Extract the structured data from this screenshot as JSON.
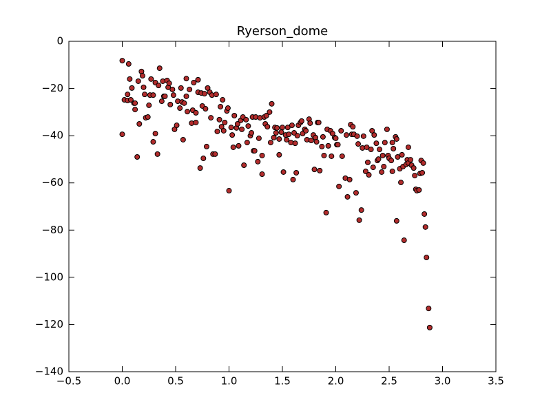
{
  "chart_data": {
    "type": "scatter",
    "title": "Ryerson_dome",
    "color": "#b22c2c",
    "edgecolor": "#000000",
    "xlim": [
      -0.5,
      3.5
    ],
    "xticks": [
      {
        "value": -0.5,
        "label": "−0.5"
      },
      {
        "value": 0,
        "label": "0.0"
      },
      0.5,
      {
        "value": 1,
        "label": "1.0"
      },
      1.5,
      {
        "value": 2,
        "label": "2.0"
      },
      2.5,
      {
        "value": 3,
        "label": "3.0"
      },
      3.5
    ],
    "ylim": [
      -140,
      0
    ],
    "yticks": [
      {
        "value": -140,
        "label": "−140"
      },
      {
        "value": -120,
        "label": "−120"
      },
      {
        "value": -100,
        "label": "−100"
      },
      {
        "value": -80,
        "label": "−80"
      },
      {
        "value": -60,
        "label": "−60"
      },
      {
        "value": -40,
        "label": "−40"
      },
      {
        "value": -20,
        "label": "−20"
      },
      0
    ],
    "x": [
      0.0,
      0.0,
      0.02,
      0.05,
      0.05,
      0.06,
      0.07,
      0.08,
      0.09,
      0.11,
      0.12,
      0.12,
      0.14,
      0.15,
      0.16,
      0.18,
      0.19,
      0.2,
      0.21,
      0.22,
      0.24,
      0.25,
      0.26,
      0.27,
      0.29,
      0.29,
      0.31,
      0.31,
      0.33,
      0.34,
      0.35,
      0.37,
      0.38,
      0.39,
      0.4,
      0.42,
      0.43,
      0.44,
      0.45,
      0.47,
      0.48,
      0.49,
      0.51,
      0.52,
      0.54,
      0.55,
      0.56,
      0.57,
      0.58,
      0.6,
      0.6,
      0.61,
      0.63,
      0.65,
      0.66,
      0.67,
      0.69,
      0.69,
      0.71,
      0.71,
      0.73,
      0.74,
      0.75,
      0.76,
      0.77,
      0.78,
      0.79,
      0.8,
      0.82,
      0.83,
      0.84,
      0.85,
      0.87,
      0.88,
      0.89,
      0.91,
      0.92,
      0.93,
      0.94,
      0.95,
      0.96,
      0.98,
      0.99,
      1.0,
      1.02,
      1.03,
      1.04,
      1.05,
      1.07,
      1.08,
      1.09,
      1.11,
      1.12,
      1.13,
      1.14,
      1.16,
      1.17,
      1.18,
      1.2,
      1.21,
      1.22,
      1.23,
      1.24,
      1.25,
      1.27,
      1.28,
      1.29,
      1.31,
      1.31,
      1.33,
      1.34,
      1.35,
      1.36,
      1.38,
      1.39,
      1.4,
      1.42,
      1.43,
      1.44,
      1.45,
      1.47,
      1.47,
      1.49,
      1.5,
      1.51,
      1.53,
      1.54,
      1.55,
      1.56,
      1.58,
      1.59,
      1.6,
      1.61,
      1.62,
      1.63,
      1.64,
      1.65,
      1.67,
      1.68,
      1.69,
      1.71,
      1.72,
      1.73,
      1.75,
      1.76,
      1.77,
      1.79,
      1.8,
      1.81,
      1.82,
      1.83,
      1.84,
      1.85,
      1.87,
      1.88,
      1.89,
      1.91,
      1.92,
      1.93,
      1.95,
      1.96,
      1.97,
      1.99,
      2.0,
      2.01,
      2.02,
      2.03,
      2.05,
      2.06,
      2.09,
      2.1,
      2.11,
      2.13,
      2.14,
      2.15,
      2.16,
      2.17,
      2.19,
      2.2,
      2.21,
      2.22,
      2.24,
      2.25,
      2.26,
      2.28,
      2.29,
      2.3,
      2.31,
      2.33,
      2.34,
      2.35,
      2.36,
      2.38,
      2.39,
      2.4,
      2.41,
      2.43,
      2.44,
      2.45,
      2.46,
      2.48,
      2.49,
      2.5,
      2.52,
      2.53,
      2.53,
      2.54,
      2.56,
      2.57,
      2.57,
      2.58,
      2.6,
      2.61,
      2.62,
      2.63,
      2.64,
      2.66,
      2.67,
      2.68,
      2.68,
      2.7,
      2.71,
      2.73,
      2.74,
      2.75,
      2.76,
      2.78,
      2.79,
      2.8,
      2.81,
      2.82,
      2.83,
      2.84,
      2.85,
      2.87,
      2.88
    ],
    "y": [
      -8.2,
      -39.4,
      -24.8,
      -25.1,
      -22.5,
      -9.6,
      -16,
      -24.8,
      -19.8,
      -26.2,
      -28.9,
      -26.2,
      -49,
      -16.9,
      -35,
      -12.8,
      -14.6,
      -19.5,
      -22.5,
      -32.4,
      -32.1,
      -27.1,
      -22.8,
      -16,
      -22.8,
      -42.6,
      -39.1,
      -17.5,
      -47.8,
      -18.7,
      -11.4,
      -25.4,
      -16.9,
      -23.3,
      -23.3,
      -16.6,
      -19.5,
      -17.8,
      -26.8,
      -20.4,
      -22.8,
      -37.3,
      -35.6,
      -25.4,
      -28.3,
      -19.8,
      -25.7,
      -41.7,
      -26.2,
      -15.8,
      -23.3,
      -29.8,
      -20.4,
      -34.7,
      -29.2,
      -17.5,
      -30.3,
      -34.4,
      -16.3,
      -21.6,
      -53.7,
      -21.9,
      -27.4,
      -49.6,
      -22.2,
      -28.6,
      -44.6,
      -19.8,
      -21.6,
      -32.4,
      -22.8,
      -47.8,
      -47.8,
      -22.5,
      -38.2,
      -33.2,
      -27.7,
      -36.2,
      -24.8,
      -37.9,
      -34.4,
      -29.5,
      -28.3,
      -63.3,
      -36.5,
      -39.7,
      -44.9,
      -31.5,
      -36.7,
      -35,
      -44.3,
      -33.5,
      -37.3,
      -32.1,
      -52.5,
      -33.2,
      -42.9,
      -35.9,
      -40,
      -38.8,
      -32.1,
      -46.4,
      -46.4,
      -32.1,
      -51,
      -41.1,
      -32.4,
      -48.4,
      -56.3,
      -32.1,
      -35,
      -31.5,
      -36.2,
      -30,
      -42.9,
      -26.5,
      -40.8,
      -36.5,
      -38.8,
      -36.7,
      -41.4,
      -48.1,
      -38.5,
      -36.5,
      -55.4,
      -39.7,
      -41.7,
      -36.5,
      -39.4,
      -42.9,
      -35.6,
      -58.6,
      -38.8,
      -43.2,
      -55.7,
      -40,
      -35.6,
      -34.4,
      -33.8,
      -39.1,
      -37.3,
      -37.9,
      -41.7,
      -33,
      -34.7,
      -42,
      -39.7,
      -54.3,
      -40.8,
      -42.6,
      -34.4,
      -34.4,
      -54.8,
      -44.6,
      -40.5,
      -48.4,
      -72.6,
      -37.3,
      -44.3,
      -37.9,
      -48.7,
      -39.1,
      -40.8,
      -41.1,
      -43.8,
      -43.8,
      -61.5,
      -37.9,
      -48.7,
      -58,
      -39.7,
      -65.9,
      -58.6,
      -35.3,
      -39.4,
      -36.2,
      -39.4,
      -64.2,
      -40.2,
      -43.5,
      -75.8,
      -71.5,
      -45.2,
      -40.2,
      -55.1,
      -44.9,
      -51.3,
      -56.6,
      -45.8,
      -37.9,
      -53.4,
      -39.7,
      -43.2,
      -50.5,
      -49.9,
      -45.8,
      -55.4,
      -48.4,
      -53.1,
      -42.9,
      -37.3,
      -48.4,
      -49.6,
      -50.5,
      -55.1,
      -42.9,
      -45.5,
      -40.5,
      -76.1,
      -41.4,
      -49,
      -54,
      -59.8,
      -48.1,
      -53.1,
      -84.3,
      -52.2,
      -50.2,
      -44.9,
      -51.6,
      -50.2,
      -52.5,
      -53.7,
      -56.9,
      -62.7,
      -63.3,
      -63,
      -56,
      -50.5,
      -55.7,
      -51.6,
      -73.2,
      -78.7,
      -91.6,
      -113.2,
      -121.3
    ]
  }
}
